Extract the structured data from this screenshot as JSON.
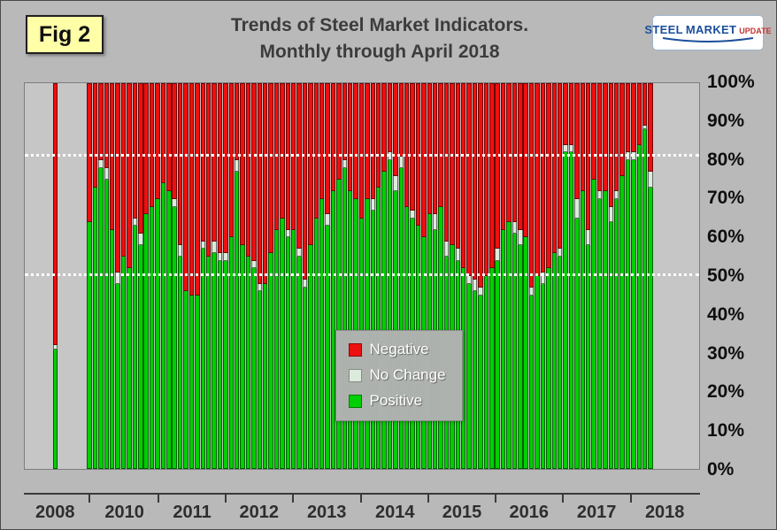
{
  "header": {
    "fig_label": "Fig 2",
    "title_line1": "Trends of Steel Market Indicators.",
    "title_line2": "Monthly through  April 2018",
    "logo": {
      "steel": "STEEL",
      "market": "MARKET",
      "update": "UPDATE"
    }
  },
  "axes": {
    "y_ticks": [
      "100%",
      "90%",
      "80%",
      "70%",
      "60%",
      "50%",
      "40%",
      "30%",
      "20%",
      "10%",
      "0%"
    ],
    "x_years": [
      {
        "label": "2008",
        "slot": 5.5
      },
      {
        "label": "2010",
        "slot": 17.7
      },
      {
        "label": "2011",
        "slot": 29.6
      },
      {
        "label": "2012",
        "slot": 41.4
      },
      {
        "label": "2013",
        "slot": 53.3
      },
      {
        "label": "2014",
        "slot": 65.3
      },
      {
        "label": "2015",
        "slot": 77.1
      },
      {
        "label": "2016",
        "slot": 88.9
      },
      {
        "label": "2017",
        "slot": 100.8
      },
      {
        "label": "2018",
        "slot": 112.8
      }
    ]
  },
  "legend": {
    "items": [
      {
        "label": "Negative",
        "color": "#ee0f0f"
      },
      {
        "label": "No Change",
        "color": "#dcecdc"
      },
      {
        "label": "Positive",
        "color": "#00cf00"
      }
    ]
  },
  "chart_data": {
    "type": "bar",
    "subtype": "stacked-100-percent",
    "title": "Trends of Steel Market Indicators.",
    "subtitle": "Monthly through  April 2018",
    "xlabel": "",
    "ylabel": "",
    "ylim": [
      0,
      100
    ],
    "y_ticks_percent": [
      0,
      10,
      20,
      30,
      40,
      50,
      60,
      70,
      80,
      90,
      100
    ],
    "reference_lines_percent": [
      50,
      81
    ],
    "legend_position": "center-bottom-overlay",
    "grid": false,
    "note": "Values estimated from chart; each bar stacks Positive (bottom), No Change (middle), Negative (top) to 100%.",
    "colors": {
      "positive": "#00cf00",
      "no_change": "#dcecdc",
      "negative": "#ee0f0f"
    },
    "layout": {
      "total_slots": 119,
      "first_bar_slot": 5,
      "monthly_start_slot": 11
    },
    "first_bar": {
      "label": "2008",
      "positive": 31,
      "no_change": 1,
      "negative": 68
    },
    "monthly": {
      "start": "2010-01",
      "end": "2018-04",
      "positive": [
        64,
        73,
        78,
        75,
        62,
        48,
        55,
        52,
        63,
        58,
        66,
        68,
        70,
        74,
        72,
        68,
        55,
        46,
        45,
        45,
        57,
        55,
        56,
        54,
        54,
        60,
        77,
        58,
        55,
        52,
        46,
        48,
        56,
        62,
        65,
        60,
        62,
        55,
        47,
        58,
        65,
        70,
        63,
        72,
        75,
        78,
        72,
        70,
        65,
        70,
        67,
        73,
        77,
        80,
        72,
        78,
        68,
        65,
        63,
        60,
        66,
        62,
        68,
        55,
        58,
        54,
        52,
        48,
        46,
        45,
        50,
        52,
        54,
        62,
        64,
        61,
        58,
        60,
        45,
        50,
        48,
        52,
        56,
        55,
        82,
        82,
        65,
        72,
        58,
        75,
        70,
        72,
        64,
        70,
        76,
        80,
        80,
        84,
        88,
        73
      ],
      "no_change": [
        0,
        0,
        2,
        3,
        0,
        3,
        0,
        0,
        2,
        3,
        0,
        0,
        0,
        0,
        0,
        2,
        3,
        0,
        0,
        0,
        2,
        0,
        3,
        2,
        2,
        0,
        3,
        0,
        0,
        2,
        2,
        0,
        0,
        0,
        0,
        2,
        0,
        2,
        2,
        0,
        0,
        0,
        3,
        0,
        0,
        2,
        0,
        0,
        0,
        0,
        3,
        0,
        0,
        2,
        4,
        3,
        0,
        2,
        0,
        0,
        0,
        4,
        0,
        4,
        0,
        3,
        0,
        2,
        3,
        2,
        0,
        0,
        3,
        0,
        0,
        3,
        4,
        0,
        2,
        0,
        3,
        0,
        0,
        2,
        2,
        2,
        5,
        0,
        4,
        0,
        2,
        0,
        4,
        2,
        0,
        2,
        2,
        0,
        1,
        4
      ],
      "negative": [
        36,
        27,
        20,
        22,
        38,
        49,
        45,
        48,
        35,
        39,
        34,
        32,
        30,
        26,
        28,
        30,
        42,
        54,
        55,
        55,
        41,
        45,
        41,
        44,
        44,
        40,
        20,
        42,
        45,
        46,
        52,
        52,
        44,
        38,
        35,
        38,
        38,
        43,
        51,
        42,
        35,
        30,
        34,
        28,
        25,
        20,
        28,
        30,
        35,
        30,
        30,
        27,
        23,
        18,
        24,
        19,
        32,
        33,
        37,
        40,
        34,
        34,
        32,
        41,
        42,
        43,
        48,
        50,
        51,
        53,
        50,
        48,
        43,
        38,
        36,
        36,
        38,
        40,
        53,
        50,
        49,
        48,
        44,
        43,
        16,
        16,
        30,
        28,
        38,
        25,
        28,
        28,
        32,
        28,
        24,
        18,
        18,
        16,
        11,
        23
      ]
    }
  }
}
